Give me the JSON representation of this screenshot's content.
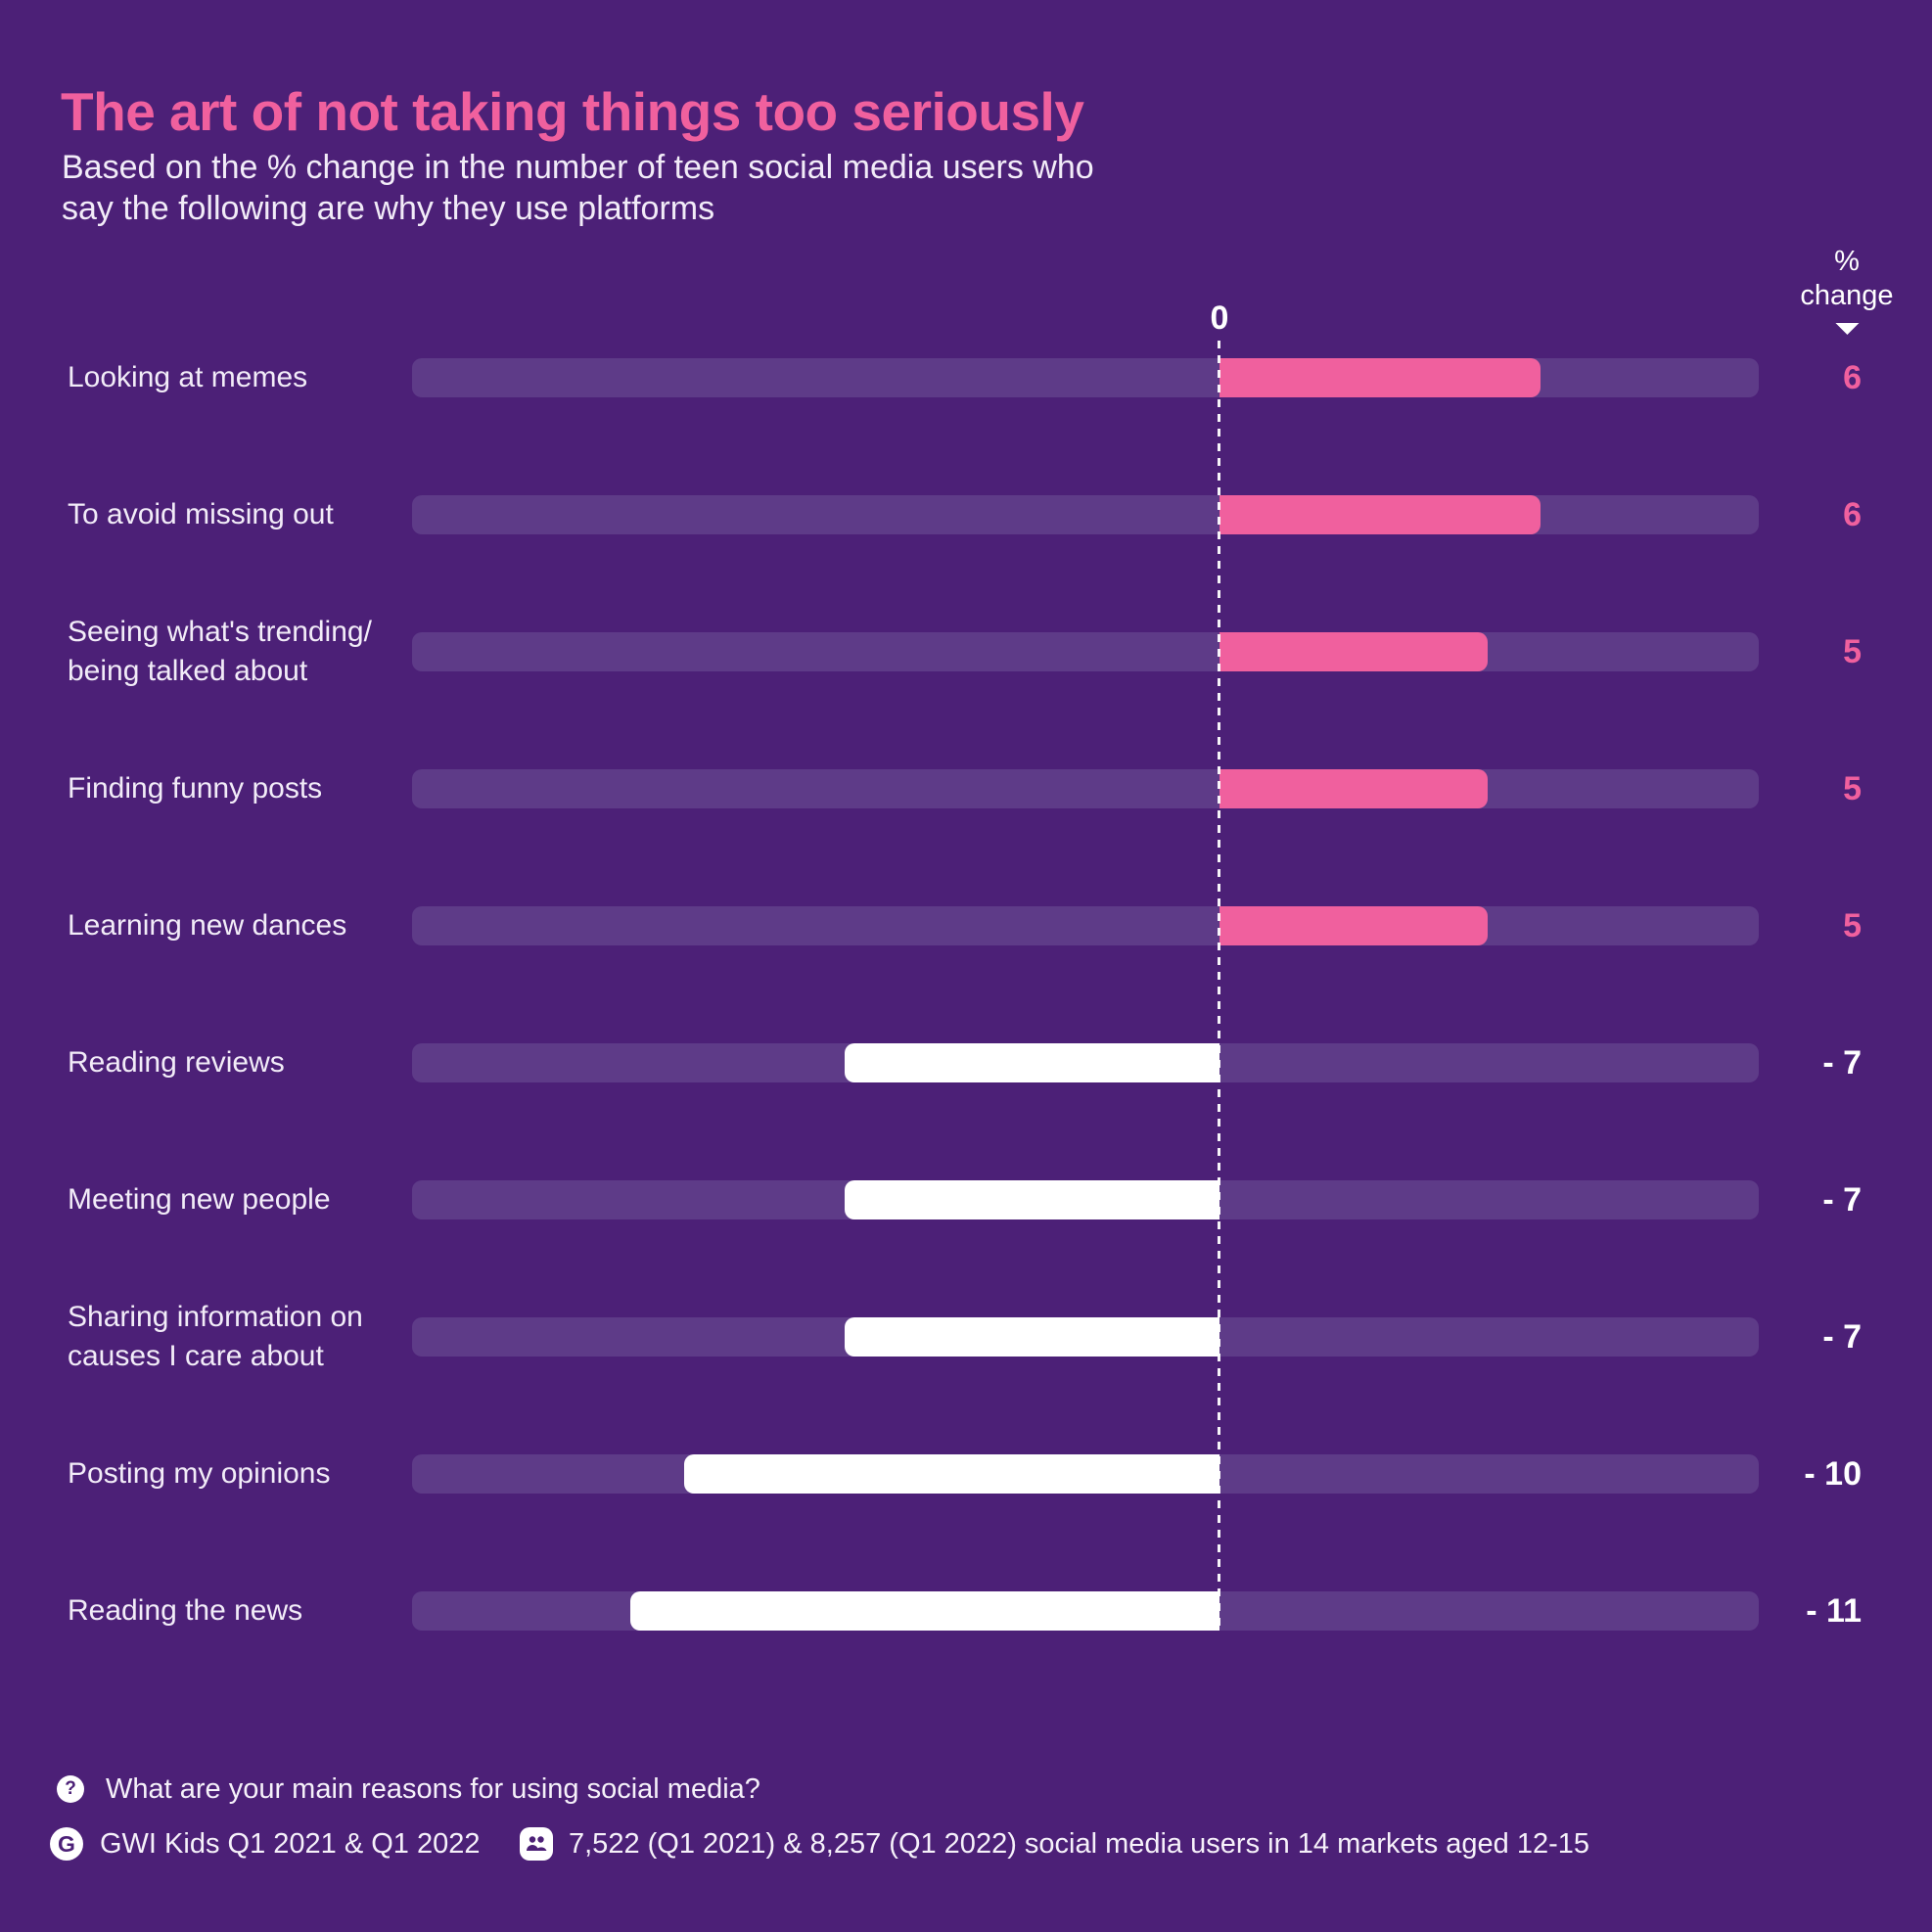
{
  "header": {
    "title": "The art of not taking things too seriously",
    "subtitle": "Based on the % change in the number of teen social media users who say the following are why they use platforms"
  },
  "axis": {
    "zero_label": "0",
    "header_line1": "%",
    "header_line2": "change",
    "sort_icon": "triangle-down-icon"
  },
  "chart_data": {
    "type": "bar",
    "orientation": "horizontal-diverging",
    "title": "The art of not taking things too seriously",
    "xlabel": "% change",
    "ylabel": "",
    "xlim": [
      -15,
      10
    ],
    "grid": false,
    "legend": "none",
    "categories": [
      "Looking at memes",
      "To avoid missing out",
      "Seeing what's trending/ being talked about",
      "Finding funny posts",
      "Learning new dances",
      "Reading reviews",
      "Meeting new people",
      "Sharing information on causes I care about",
      "Posting my opinions",
      "Reading the news"
    ],
    "values": [
      6,
      6,
      5,
      5,
      5,
      -7,
      -7,
      -7,
      -10,
      -11
    ],
    "rows": [
      {
        "label": "Looking at memes",
        "value": 6,
        "display": "6"
      },
      {
        "label": "To avoid missing out",
        "value": 6,
        "display": "6"
      },
      {
        "label": "Seeing what's trending/ being talked about",
        "value": 5,
        "display": "5"
      },
      {
        "label": "Finding funny posts",
        "value": 5,
        "display": "5"
      },
      {
        "label": "Learning new dances",
        "value": 5,
        "display": "5"
      },
      {
        "label": "Reading reviews",
        "value": -7,
        "display": "- 7"
      },
      {
        "label": "Meeting new people",
        "value": -7,
        "display": "- 7"
      },
      {
        "label": "Sharing information on causes I care about",
        "value": -7,
        "display": "- 7"
      },
      {
        "label": "Posting my opinions",
        "value": -10,
        "display": "- 10"
      },
      {
        "label": "Reading the news",
        "value": -11,
        "display": "- 11"
      }
    ],
    "colors": {
      "background": "#4C2077",
      "track": "#5E3B88",
      "positive_bar": "#F0609E",
      "negative_bar": "#FFFFFF",
      "title_accent": "#F0609E",
      "text": "#F2ECF8"
    }
  },
  "footer": {
    "question": "What are your main reasons for using social media?",
    "question_icon": "?",
    "source_icon": "G",
    "source": "GWI Kids Q1 2021 & Q1 2022",
    "sample_icon": "people",
    "sample": "7,522 (Q1 2021) & 8,257 (Q1 2022) social media users in 14 markets aged 12-15"
  }
}
